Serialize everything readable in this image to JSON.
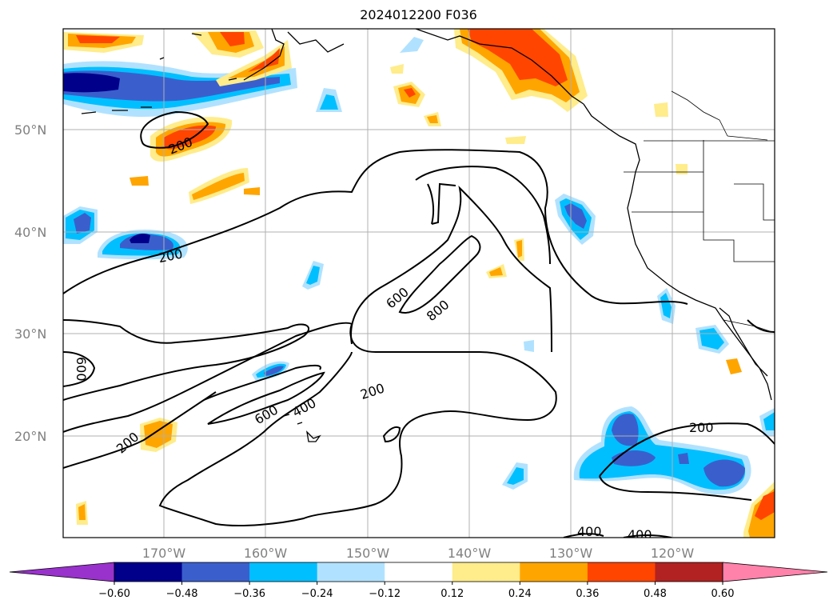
{
  "title": "2024012200 F036",
  "lat_labels": [
    "50°N",
    "40°N",
    "30°N",
    "20°N"
  ],
  "lon_labels": [
    "170°W",
    "160°W",
    "150°W",
    "140°W",
    "130°W",
    "120°W"
  ],
  "contour_labels": [
    {
      "text": "200",
      "id": "contour-label-200-a"
    },
    {
      "text": "200",
      "id": "contour-label-200-b"
    },
    {
      "text": "600",
      "id": "contour-label-600-a"
    },
    {
      "text": "800",
      "id": "contour-label-800"
    },
    {
      "text": "600",
      "id": "contour-label-600-b"
    },
    {
      "text": "200",
      "id": "contour-label-200-c"
    },
    {
      "text": "600",
      "id": "contour-label-600-c"
    },
    {
      "text": "400",
      "id": "contour-label-400-a"
    },
    {
      "text": "200",
      "id": "contour-label-200-d"
    },
    {
      "text": "200",
      "id": "contour-label-200-e"
    },
    {
      "text": "400",
      "id": "contour-label-400-b"
    },
    {
      "text": "400",
      "id": "contour-label-400-c"
    }
  ],
  "colorbar": {
    "ticks": [
      "−0.60",
      "−0.48",
      "−0.36",
      "−0.24",
      "−0.12",
      "0.12",
      "0.24",
      "0.36",
      "0.48",
      "0.60"
    ],
    "colors": [
      "#9932cc",
      "#00008b",
      "#3a5fcd",
      "#00bfff",
      "#b0e2ff",
      "#ffffff",
      "#ffec8b",
      "#ffa500",
      "#ff4500",
      "#b22222",
      "#ff82ab"
    ]
  }
}
